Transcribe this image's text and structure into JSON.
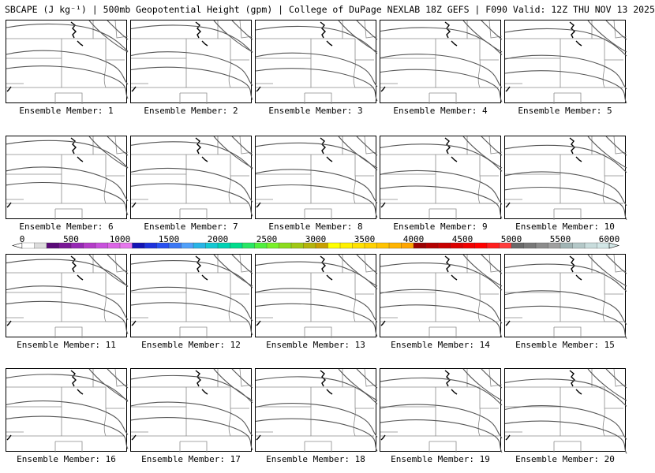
{
  "header": {
    "title": "SBCAPE (J kg⁻¹) | 500mb Geopotential Height (gpm) | College of DuPage NEXLAB 18Z GEFS | F090 Valid: 12Z THU NOV 13 2025"
  },
  "colorbar": {
    "ticks": [
      "0",
      "500",
      "1000",
      "1500",
      "2000",
      "2500",
      "3000",
      "3500",
      "4000",
      "4500",
      "5000",
      "5500",
      "6000"
    ],
    "colors": [
      "#ffffff",
      "#dcdcdc",
      "#5a0a78",
      "#7a1896",
      "#9628b4",
      "#b43cc8",
      "#c850dc",
      "#dc64e6",
      "#e678ec",
      "#1414b4",
      "#1e32dc",
      "#2850f0",
      "#3c78f5",
      "#50a0fa",
      "#28b4e6",
      "#14c8d2",
      "#00d2b4",
      "#00dc8c",
      "#28e664",
      "#50f03c",
      "#78f028",
      "#8cdc1e",
      "#a0c814",
      "#b4b40a",
      "#c8a000",
      "#ffff00",
      "#fff000",
      "#ffe100",
      "#ffd200",
      "#ffc300",
      "#ffb400",
      "#ffa500",
      "#9b0000",
      "#b40000",
      "#c80000",
      "#dc0000",
      "#f00000",
      "#ff0000",
      "#ff1e1e",
      "#ff3c3c",
      "#696969",
      "#787878",
      "#8c8c8c",
      "#a0a0a0",
      "#a0b4b4",
      "#b4c8c8",
      "#c8dcdc",
      "#d2e6e6"
    ]
  },
  "panels": [
    {
      "label": "Ensemble Member: 1"
    },
    {
      "label": "Ensemble Member: 2"
    },
    {
      "label": "Ensemble Member: 3"
    },
    {
      "label": "Ensemble Member: 4"
    },
    {
      "label": "Ensemble Member: 5"
    },
    {
      "label": "Ensemble Member: 6"
    },
    {
      "label": "Ensemble Member: 7"
    },
    {
      "label": "Ensemble Member: 8"
    },
    {
      "label": "Ensemble Member: 9"
    },
    {
      "label": "Ensemble Member: 10"
    },
    {
      "label": "Ensemble Member: 11"
    },
    {
      "label": "Ensemble Member: 12"
    },
    {
      "label": "Ensemble Member: 13"
    },
    {
      "label": "Ensemble Member: 14"
    },
    {
      "label": "Ensemble Member: 15"
    },
    {
      "label": "Ensemble Member: 16"
    },
    {
      "label": "Ensemble Member: 17"
    },
    {
      "label": "Ensemble Member: 18"
    },
    {
      "label": "Ensemble Member: 19"
    },
    {
      "label": "Ensemble Member: 20"
    }
  ]
}
